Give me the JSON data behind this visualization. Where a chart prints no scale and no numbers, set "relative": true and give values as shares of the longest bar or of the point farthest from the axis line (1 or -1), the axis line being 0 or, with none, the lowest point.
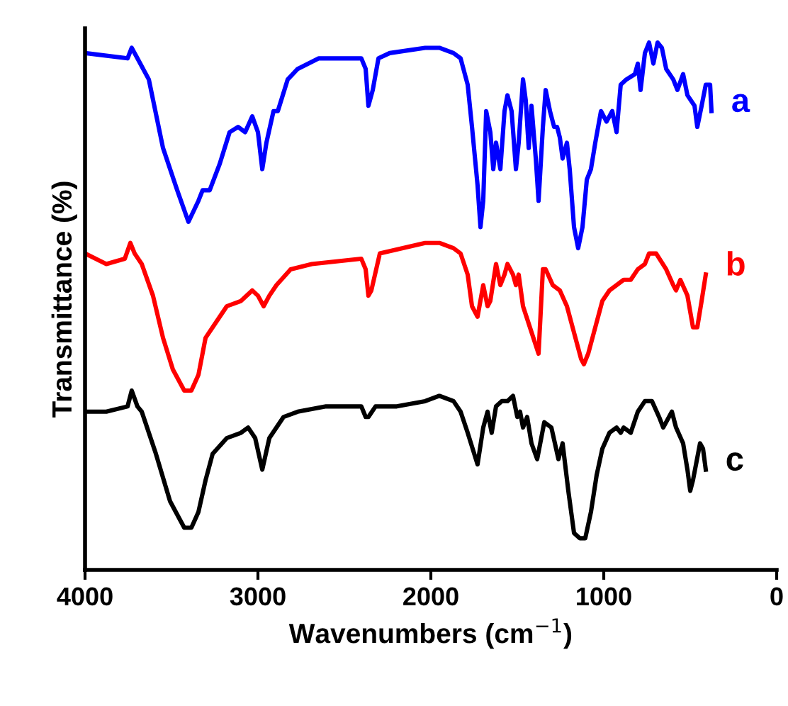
{
  "chart_data": {
    "type": "line",
    "relative": true,
    "xlabel": "Wavenumbers (cm$^{−1}$)",
    "ylabel": "Transmittance (%)",
    "xlim": [
      4000,
      0
    ],
    "xticks": [
      4000,
      3000,
      2000,
      1000,
      0
    ],
    "tick_labels": "x",
    "grid": false,
    "legend": false,
    "marker": "none",
    "line_style": "solid",
    "series": [
      {
        "name": "a",
        "color": "#0000ff",
        "x": [
          4000,
          3754,
          3730,
          3697,
          3631,
          3549,
          3467,
          3402,
          3344,
          3320,
          3279,
          3221,
          3164,
          3115,
          3074,
          3033,
          3000,
          2975,
          2951,
          2910,
          2885,
          2828,
          2770,
          2648,
          2402,
          2377,
          2361,
          2336,
          2303,
          2238,
          2033,
          1951,
          1869,
          1828,
          1787,
          1762,
          1730,
          1713,
          1697,
          1680,
          1656,
          1639,
          1623,
          1598,
          1574,
          1557,
          1533,
          1508,
          1492,
          1467,
          1451,
          1434,
          1418,
          1393,
          1377,
          1352,
          1336,
          1311,
          1287,
          1270,
          1254,
          1238,
          1213,
          1197,
          1172,
          1148,
          1123,
          1098,
          1074,
          1049,
          1016,
          984,
          951,
          926,
          902,
          869,
          820,
          803,
          787,
          762,
          738,
          713,
          689,
          664,
          639,
          598,
          574,
          541,
          516,
          475,
          459,
          434,
          410,
          385,
          377
        ],
        "values": [
          0.98,
          0.97,
          0.99,
          0.97,
          0.93,
          0.8,
          0.72,
          0.66,
          0.7,
          0.72,
          0.72,
          0.77,
          0.83,
          0.84,
          0.83,
          0.86,
          0.83,
          0.76,
          0.81,
          0.87,
          0.87,
          0.93,
          0.95,
          0.97,
          0.97,
          0.95,
          0.88,
          0.91,
          0.97,
          0.98,
          0.99,
          0.99,
          0.98,
          0.97,
          0.92,
          0.84,
          0.73,
          0.65,
          0.7,
          0.87,
          0.83,
          0.76,
          0.81,
          0.76,
          0.87,
          0.9,
          0.87,
          0.76,
          0.81,
          0.93,
          0.89,
          0.8,
          0.88,
          0.78,
          0.7,
          0.84,
          0.91,
          0.87,
          0.84,
          0.84,
          0.82,
          0.78,
          0.81,
          0.76,
          0.65,
          0.61,
          0.65,
          0.74,
          0.76,
          0.81,
          0.87,
          0.85,
          0.87,
          0.83,
          0.92,
          0.93,
          0.94,
          0.96,
          0.91,
          0.98,
          1.0,
          0.96,
          1.0,
          0.99,
          0.95,
          0.93,
          0.91,
          0.94,
          0.9,
          0.88,
          0.84,
          0.88,
          0.92,
          0.92,
          0.87
        ]
      },
      {
        "name": "b",
        "color": "#ff0000",
        "x": [
          4000,
          3877,
          3770,
          3738,
          3713,
          3672,
          3607,
          3549,
          3492,
          3426,
          3385,
          3344,
          3303,
          3262,
          3180,
          3098,
          3033,
          3000,
          2967,
          2934,
          2893,
          2811,
          2688,
          2402,
          2377,
          2361,
          2344,
          2295,
          2033,
          1951,
          1869,
          1828,
          1787,
          1762,
          1730,
          1697,
          1672,
          1656,
          1623,
          1598,
          1574,
          1557,
          1525,
          1508,
          1492,
          1467,
          1377,
          1352,
          1336,
          1295,
          1254,
          1213,
          1172,
          1131,
          1115,
          1090,
          1049,
          1008,
          967,
          926,
          885,
          844,
          803,
          762,
          738,
          697,
          639,
          598,
          582,
          557,
          516,
          500,
          484,
          459,
          434,
          410
        ],
        "values": [
          0.6,
          0.58,
          0.59,
          0.62,
          0.6,
          0.58,
          0.52,
          0.44,
          0.38,
          0.34,
          0.34,
          0.37,
          0.44,
          0.46,
          0.5,
          0.51,
          0.53,
          0.52,
          0.5,
          0.52,
          0.54,
          0.57,
          0.58,
          0.59,
          0.57,
          0.52,
          0.53,
          0.6,
          0.62,
          0.62,
          0.61,
          0.6,
          0.56,
          0.5,
          0.48,
          0.54,
          0.5,
          0.51,
          0.58,
          0.54,
          0.56,
          0.58,
          0.56,
          0.54,
          0.56,
          0.5,
          0.41,
          0.57,
          0.57,
          0.54,
          0.53,
          0.5,
          0.45,
          0.4,
          0.39,
          0.41,
          0.46,
          0.51,
          0.53,
          0.54,
          0.55,
          0.55,
          0.57,
          0.58,
          0.6,
          0.6,
          0.57,
          0.54,
          0.53,
          0.55,
          0.52,
          0.49,
          0.46,
          0.46,
          0.51,
          0.56
        ]
      },
      {
        "name": "c",
        "color": "#000000",
        "x": [
          4000,
          3877,
          3754,
          3730,
          3697,
          3672,
          3590,
          3508,
          3426,
          3385,
          3344,
          3303,
          3262,
          3180,
          3098,
          3057,
          3016,
          2975,
          2934,
          2852,
          2770,
          2606,
          2402,
          2377,
          2361,
          2320,
          2197,
          2033,
          1951,
          1869,
          1828,
          1787,
          1730,
          1697,
          1672,
          1648,
          1623,
          1590,
          1557,
          1525,
          1500,
          1484,
          1467,
          1443,
          1418,
          1385,
          1344,
          1303,
          1262,
          1238,
          1205,
          1172,
          1139,
          1107,
          1074,
          1041,
          1008,
          967,
          926,
          902,
          885,
          844,
          803,
          762,
          721,
          680,
          656,
          606,
          582,
          541,
          516,
          500,
          484,
          443,
          426,
          410
        ],
        "values": [
          0.3,
          0.3,
          0.31,
          0.34,
          0.31,
          0.3,
          0.22,
          0.13,
          0.08,
          0.08,
          0.11,
          0.17,
          0.22,
          0.25,
          0.26,
          0.27,
          0.25,
          0.19,
          0.25,
          0.29,
          0.3,
          0.31,
          0.31,
          0.29,
          0.29,
          0.31,
          0.31,
          0.32,
          0.33,
          0.32,
          0.3,
          0.26,
          0.2,
          0.27,
          0.3,
          0.26,
          0.31,
          0.32,
          0.32,
          0.33,
          0.29,
          0.3,
          0.27,
          0.29,
          0.24,
          0.21,
          0.28,
          0.27,
          0.21,
          0.24,
          0.15,
          0.07,
          0.06,
          0.06,
          0.11,
          0.18,
          0.23,
          0.26,
          0.27,
          0.26,
          0.27,
          0.26,
          0.3,
          0.32,
          0.32,
          0.29,
          0.27,
          0.3,
          0.27,
          0.24,
          0.19,
          0.15,
          0.17,
          0.24,
          0.23,
          0.19
        ]
      }
    ]
  }
}
